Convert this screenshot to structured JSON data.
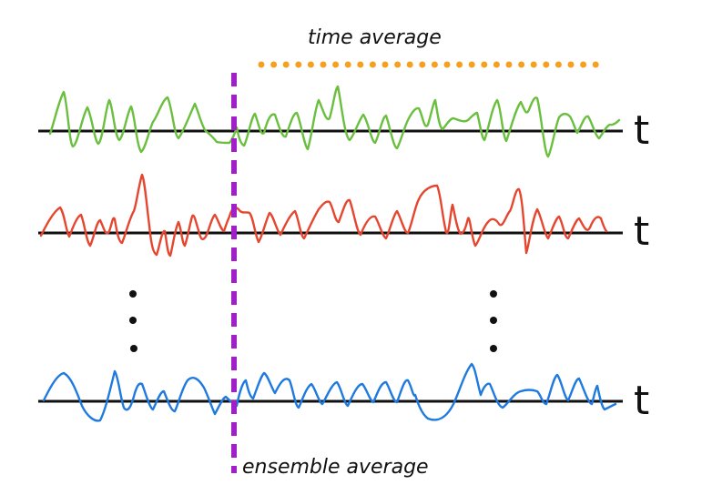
{
  "labels": {
    "time_average": "time average",
    "ensemble_average": "ensemble average",
    "axis_symbol": "t"
  },
  "colors": {
    "background": "#ffffff",
    "axis": "#111111",
    "signal_1": "#6bbf3f",
    "signal_2": "#e5462f",
    "signal_3": "#1f7ae0",
    "ensemble_marker": "#a020c8",
    "time_marker": "#f4a020",
    "ellipsis_dots": "#111111"
  }
}
